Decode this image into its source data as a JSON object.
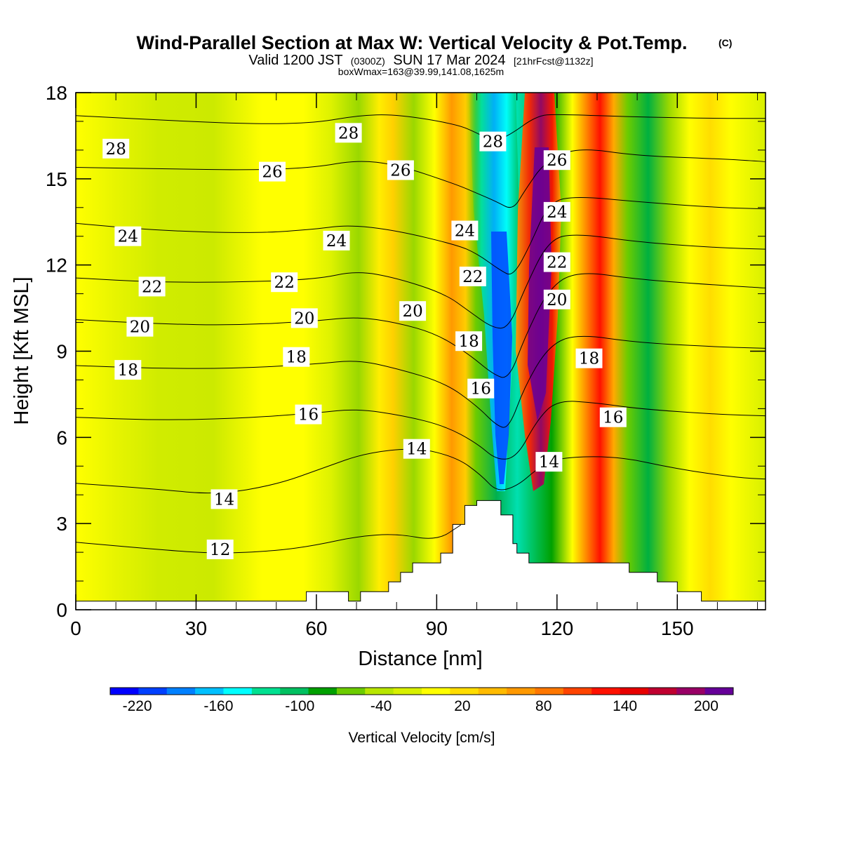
{
  "header": {
    "title": "Wind-Parallel Section at Max W: Vertical Velocity & Pot.Temp.",
    "title_mark": "(C)",
    "valid_prefix": "Valid 1200 JST",
    "valid_utc": "(0300Z)",
    "valid_date": "SUN 17 Mar 2024",
    "forecast": "[21hrFcst@1132z]",
    "boxinfo": "boxWmax=163@39.99,141.08,1625m"
  },
  "chart_data": {
    "type": "heatmap",
    "xlabel": "Distance [nm]",
    "ylabel": "Height [Kft MSL]",
    "xlim": [
      0,
      172
    ],
    "ylim": [
      0,
      18
    ],
    "x_ticks": [
      "0",
      "30",
      "60",
      "90",
      "120",
      "150"
    ],
    "x_tick_values": [
      0,
      30,
      60,
      90,
      120,
      150
    ],
    "y_ticks": [
      "0",
      "3",
      "6",
      "9",
      "12",
      "15",
      "18"
    ],
    "y_tick_values": [
      0,
      3,
      6,
      9,
      12,
      15,
      18
    ],
    "colorbar": {
      "label": "Vertical Velocity [cm/s]",
      "tick_labels": [
        "-220",
        "-160",
        "-100",
        "-40",
        "20",
        "80",
        "140",
        "200"
      ],
      "tick_values": [
        -220,
        -160,
        -100,
        -40,
        20,
        80,
        140,
        200
      ],
      "colors": [
        "#0000ff",
        "#0040ff",
        "#0080ff",
        "#00c0ff",
        "#00ffff",
        "#00e090",
        "#00c060",
        "#00a000",
        "#6ccc00",
        "#b8e600",
        "#d8f000",
        "#ffff00",
        "#ffdd00",
        "#ffbb00",
        "#ff9900",
        "#ff7700",
        "#ff4400",
        "#ff1100",
        "#e80000",
        "#c00030",
        "#990066",
        "#660099"
      ]
    },
    "terrain": [
      [
        0,
        0.3
      ],
      [
        57.5,
        0.3
      ],
      [
        57.5,
        0.63
      ],
      [
        68,
        0.63
      ],
      [
        68,
        0.3
      ],
      [
        71,
        0.3
      ],
      [
        71,
        0.63
      ],
      [
        78,
        0.63
      ],
      [
        78,
        0.97
      ],
      [
        81,
        0.97
      ],
      [
        81,
        1.3
      ],
      [
        84,
        1.3
      ],
      [
        84,
        1.63
      ],
      [
        91,
        1.63
      ],
      [
        91,
        1.97
      ],
      [
        94,
        1.97
      ],
      [
        94,
        2.97
      ],
      [
        97,
        2.97
      ],
      [
        97,
        3.63
      ],
      [
        100,
        3.63
      ],
      [
        100,
        3.8
      ],
      [
        106,
        3.8
      ],
      [
        106,
        3.3
      ],
      [
        109,
        3.3
      ],
      [
        109,
        2.3
      ],
      [
        110,
        2.3
      ],
      [
        110,
        1.97
      ],
      [
        113,
        1.97
      ],
      [
        113,
        1.63
      ],
      [
        138,
        1.63
      ],
      [
        138,
        1.3
      ],
      [
        145,
        1.3
      ],
      [
        145,
        0.97
      ],
      [
        150,
        0.97
      ],
      [
        150,
        0.63
      ],
      [
        156,
        0.63
      ],
      [
        156,
        0.3
      ],
      [
        172,
        0.3
      ]
    ],
    "theta_contours": [
      {
        "label": "28",
        "points": [
          [
            0,
            17.2
          ],
          [
            20,
            17.05
          ],
          [
            45,
            16.9
          ],
          [
            60,
            16.95
          ],
          [
            70,
            17.2
          ],
          [
            80,
            17.25
          ],
          [
            95,
            16.9
          ],
          [
            100,
            16.6
          ],
          [
            104,
            16.3
          ],
          [
            108,
            16.5
          ],
          [
            115,
            17.2
          ],
          [
            120,
            17.25
          ],
          [
            140,
            17.15
          ],
          [
            160,
            17.1
          ],
          [
            172,
            17.1
          ]
        ]
      },
      {
        "label": "26",
        "points": [
          [
            0,
            15.4
          ],
          [
            20,
            15.35
          ],
          [
            45,
            15.3
          ],
          [
            60,
            15.4
          ],
          [
            70,
            15.65
          ],
          [
            80,
            15.5
          ],
          [
            95,
            14.8
          ],
          [
            100,
            14.5
          ],
          [
            105,
            14.2
          ],
          [
            109,
            13.9
          ],
          [
            112,
            14.6
          ],
          [
            117,
            15.6
          ],
          [
            125,
            16.1
          ],
          [
            140,
            15.8
          ],
          [
            160,
            15.7
          ],
          [
            172,
            15.6
          ]
        ]
      },
      {
        "label": "24",
        "points": [
          [
            0,
            13.45
          ],
          [
            20,
            13.2
          ],
          [
            45,
            13.1
          ],
          [
            60,
            13.25
          ],
          [
            68,
            13.4
          ],
          [
            80,
            13.2
          ],
          [
            95,
            12.7
          ],
          [
            100,
            12.4
          ],
          [
            106,
            11.8
          ],
          [
            109,
            11.6
          ],
          [
            113,
            12.6
          ],
          [
            118,
            14.2
          ],
          [
            125,
            14.4
          ],
          [
            140,
            14.2
          ],
          [
            160,
            14.0
          ],
          [
            172,
            13.95
          ]
        ]
      },
      {
        "label": "22",
        "points": [
          [
            0,
            11.55
          ],
          [
            20,
            11.4
          ],
          [
            40,
            11.4
          ],
          [
            60,
            11.5
          ],
          [
            70,
            11.8
          ],
          [
            80,
            11.55
          ],
          [
            92,
            11.0
          ],
          [
            98,
            10.4
          ],
          [
            104,
            9.8
          ],
          [
            108,
            9.8
          ],
          [
            112,
            11.2
          ],
          [
            118,
            12.9
          ],
          [
            125,
            13.1
          ],
          [
            140,
            12.8
          ],
          [
            160,
            12.6
          ],
          [
            172,
            12.55
          ]
        ]
      },
      {
        "label": "20",
        "points": [
          [
            0,
            10.1
          ],
          [
            20,
            9.95
          ],
          [
            40,
            9.9
          ],
          [
            60,
            10.05
          ],
          [
            70,
            10.2
          ],
          [
            80,
            10.0
          ],
          [
            90,
            9.6
          ],
          [
            98,
            8.9
          ],
          [
            104,
            8.2
          ],
          [
            108,
            8.0
          ],
          [
            112,
            9.5
          ],
          [
            118,
            11.2
          ],
          [
            125,
            11.8
          ],
          [
            140,
            11.5
          ],
          [
            160,
            11.3
          ],
          [
            172,
            11.2
          ]
        ]
      },
      {
        "label": "18",
        "points": [
          [
            0,
            8.5
          ],
          [
            20,
            8.4
          ],
          [
            40,
            8.4
          ],
          [
            60,
            8.55
          ],
          [
            70,
            8.7
          ],
          [
            80,
            8.4
          ],
          [
            92,
            7.9
          ],
          [
            100,
            7.1
          ],
          [
            105,
            6.4
          ],
          [
            108,
            6.3
          ],
          [
            112,
            7.8
          ],
          [
            118,
            9.2
          ],
          [
            125,
            9.6
          ],
          [
            140,
            9.3
          ],
          [
            160,
            9.15
          ],
          [
            172,
            9.1
          ]
        ]
      },
      {
        "label": "16",
        "points": [
          [
            0,
            6.7
          ],
          [
            20,
            6.6
          ],
          [
            40,
            6.65
          ],
          [
            60,
            6.85
          ],
          [
            70,
            7.0
          ],
          [
            82,
            6.75
          ],
          [
            92,
            6.4
          ],
          [
            100,
            5.8
          ],
          [
            105,
            5.2
          ],
          [
            110,
            5.3
          ],
          [
            115,
            6.6
          ],
          [
            120,
            7.3
          ],
          [
            130,
            7.2
          ],
          [
            140,
            7.0
          ],
          [
            160,
            6.8
          ],
          [
            172,
            6.75
          ]
        ]
      },
      {
        "label": "14",
        "points": [
          [
            0,
            4.4
          ],
          [
            20,
            4.2
          ],
          [
            35,
            4.0
          ],
          [
            50,
            4.35
          ],
          [
            62,
            4.95
          ],
          [
            72,
            5.45
          ],
          [
            85,
            5.65
          ],
          [
            95,
            5.3
          ],
          [
            101,
            4.7
          ],
          [
            105,
            4.1
          ],
          [
            110,
            4.3
          ],
          [
            115,
            4.9
          ],
          [
            120,
            5.3
          ],
          [
            135,
            5.35
          ],
          [
            150,
            4.9
          ],
          [
            165,
            4.6
          ],
          [
            172,
            4.55
          ]
        ]
      },
      {
        "label": "12",
        "points": [
          [
            0,
            2.35
          ],
          [
            20,
            2.1
          ],
          [
            35,
            1.95
          ],
          [
            50,
            2.05
          ],
          [
            60,
            2.25
          ],
          [
            70,
            2.55
          ],
          [
            80,
            2.65
          ],
          [
            90,
            2.4
          ],
          [
            96,
            2.95
          ]
        ]
      }
    ],
    "contour_labels": [
      {
        "text": "28",
        "x": 10,
        "y": 16.05
      },
      {
        "text": "28",
        "x": 68,
        "y": 16.6
      },
      {
        "text": "28",
        "x": 104,
        "y": 16.3
      },
      {
        "text": "26",
        "x": 49,
        "y": 15.25
      },
      {
        "text": "26",
        "x": 81,
        "y": 15.3
      },
      {
        "text": "26",
        "x": 120,
        "y": 15.65
      },
      {
        "text": "24",
        "x": 13,
        "y": 13.0
      },
      {
        "text": "24",
        "x": 65,
        "y": 12.85
      },
      {
        "text": "24",
        "x": 97,
        "y": 13.2
      },
      {
        "text": "24",
        "x": 120,
        "y": 13.85
      },
      {
        "text": "22",
        "x": 19,
        "y": 11.25
      },
      {
        "text": "22",
        "x": 52,
        "y": 11.4
      },
      {
        "text": "22",
        "x": 99,
        "y": 11.6
      },
      {
        "text": "22",
        "x": 120,
        "y": 12.1
      },
      {
        "text": "20",
        "x": 16,
        "y": 9.85
      },
      {
        "text": "20",
        "x": 57,
        "y": 10.15
      },
      {
        "text": "20",
        "x": 84,
        "y": 10.4
      },
      {
        "text": "20",
        "x": 120,
        "y": 10.8
      },
      {
        "text": "18",
        "x": 13,
        "y": 8.35
      },
      {
        "text": "18",
        "x": 55,
        "y": 8.8
      },
      {
        "text": "18",
        "x": 98,
        "y": 9.35
      },
      {
        "text": "18",
        "x": 128,
        "y": 8.75
      },
      {
        "text": "16",
        "x": 58,
        "y": 6.8
      },
      {
        "text": "16",
        "x": 101,
        "y": 7.7
      },
      {
        "text": "16",
        "x": 134,
        "y": 6.7
      },
      {
        "text": "14",
        "x": 37,
        "y": 3.85
      },
      {
        "text": "14",
        "x": 85,
        "y": 5.6
      },
      {
        "text": "14",
        "x": 118,
        "y": 5.15
      },
      {
        "text": "12",
        "x": 36,
        "y": 2.1
      }
    ]
  }
}
